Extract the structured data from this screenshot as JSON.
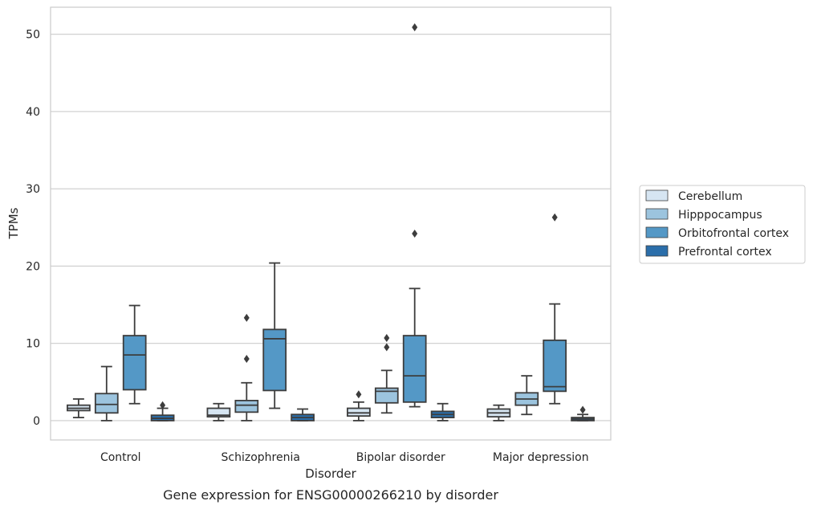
{
  "caption": "Gene expression for ENSG00000266210 by disorder",
  "chart_data": {
    "type": "box",
    "xlabel": "Disorder",
    "ylabel": "TPMs",
    "ylim": [
      -2.5,
      53.5
    ],
    "yticks": [
      0,
      10,
      20,
      30,
      40,
      50
    ],
    "grid": "horizontal",
    "legend_placement": "right",
    "categories": [
      "Control",
      "Schizophrenia",
      "Bipolar disorder",
      "Major depression"
    ],
    "series": [
      {
        "name": "Cerebellum",
        "color": "#d6e5f2",
        "boxes": [
          {
            "whislo": 0.4,
            "q1": 1.3,
            "med": 1.6,
            "q3": 2.0,
            "whishi": 2.8,
            "fliers": []
          },
          {
            "whislo": 0.0,
            "q1": 0.5,
            "med": 0.7,
            "q3": 1.6,
            "whishi": 2.2,
            "fliers": []
          },
          {
            "whislo": 0.0,
            "q1": 0.6,
            "med": 1.0,
            "q3": 1.6,
            "whishi": 2.4,
            "fliers": [
              3.4
            ]
          },
          {
            "whislo": 0.0,
            "q1": 0.5,
            "med": 1.0,
            "q3": 1.5,
            "whishi": 2.0,
            "fliers": []
          }
        ]
      },
      {
        "name": "Hipppocampus",
        "color": "#9cc4de",
        "boxes": [
          {
            "whislo": 0.0,
            "q1": 1.0,
            "med": 2.1,
            "q3": 3.5,
            "whishi": 7.0,
            "fliers": []
          },
          {
            "whislo": 0.0,
            "q1": 1.1,
            "med": 2.0,
            "q3": 2.6,
            "whishi": 4.9,
            "fliers": [
              8.0,
              13.3
            ]
          },
          {
            "whislo": 1.0,
            "q1": 2.3,
            "med": 3.8,
            "q3": 4.2,
            "whishi": 6.5,
            "fliers": [
              9.5,
              10.7
            ]
          },
          {
            "whislo": 0.8,
            "q1": 2.0,
            "med": 2.8,
            "q3": 3.6,
            "whishi": 5.8,
            "fliers": []
          }
        ]
      },
      {
        "name": "Orbitofrontal cortex",
        "color": "#5498c6",
        "boxes": [
          {
            "whislo": 2.2,
            "q1": 4.0,
            "med": 8.5,
            "q3": 11.0,
            "whishi": 14.9,
            "fliers": []
          },
          {
            "whislo": 1.6,
            "q1": 3.9,
            "med": 10.6,
            "q3": 11.8,
            "whishi": 20.4,
            "fliers": []
          },
          {
            "whislo": 1.8,
            "q1": 2.4,
            "med": 5.8,
            "q3": 11.0,
            "whishi": 17.1,
            "fliers": [
              24.2,
              50.9
            ]
          },
          {
            "whislo": 2.2,
            "q1": 3.8,
            "med": 4.4,
            "q3": 10.4,
            "whishi": 15.1,
            "fliers": [
              26.3
            ]
          }
        ]
      },
      {
        "name": "Prefrontal cortex",
        "color": "#2b6eaa",
        "boxes": [
          {
            "whislo": 0.0,
            "q1": 0.0,
            "med": 0.3,
            "q3": 0.7,
            "whishi": 1.6,
            "fliers": [
              2.0
            ]
          },
          {
            "whislo": 0.0,
            "q1": 0.0,
            "med": 0.4,
            "q3": 0.8,
            "whishi": 1.5,
            "fliers": []
          },
          {
            "whislo": 0.0,
            "q1": 0.4,
            "med": 0.8,
            "q3": 1.2,
            "whishi": 2.2,
            "fliers": []
          },
          {
            "whislo": 0.0,
            "q1": 0.0,
            "med": 0.2,
            "q3": 0.4,
            "whishi": 0.8,
            "fliers": [
              1.4
            ]
          }
        ]
      }
    ]
  }
}
